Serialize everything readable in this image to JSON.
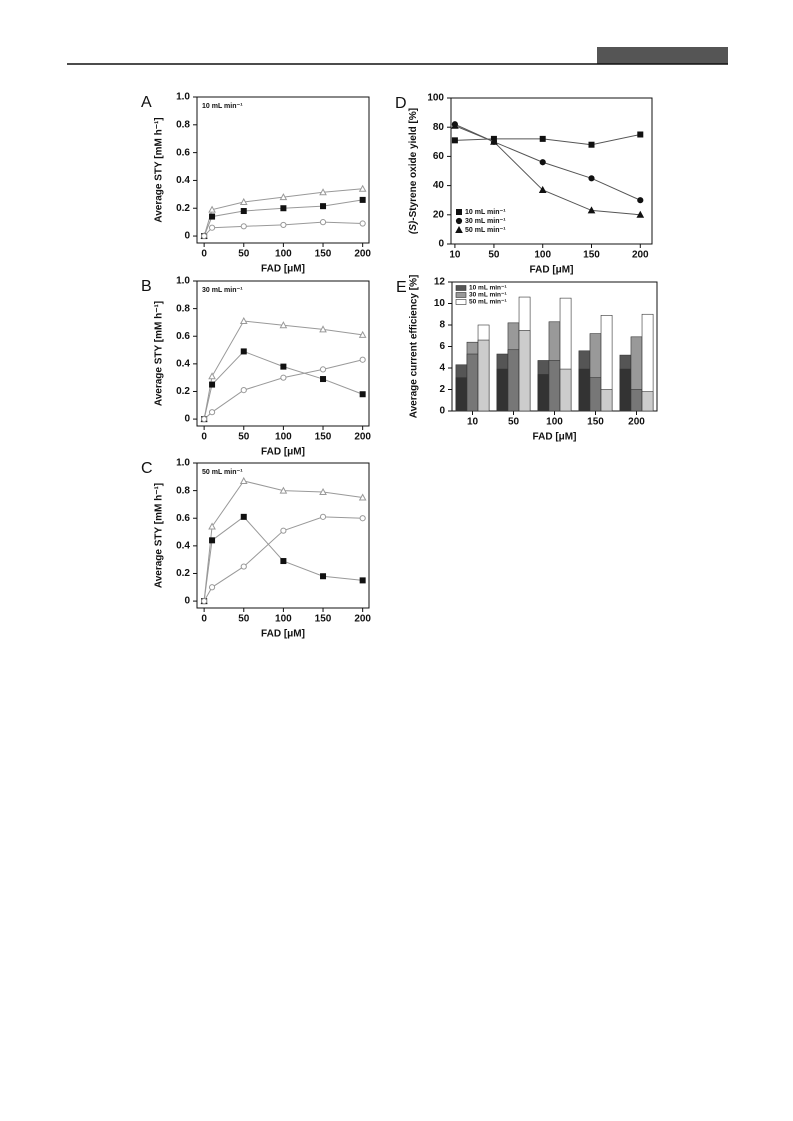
{
  "chart_data": [
    {
      "type": "line",
      "panel": "A",
      "annotation": "10 mL min⁻¹",
      "x_label": "FAD [μM]",
      "y_label": "Average STY [mM h⁻¹]",
      "x": [
        0,
        10,
        50,
        100,
        150,
        200
      ],
      "xlim": [
        -9,
        208
      ],
      "xticks": [
        0,
        50,
        100,
        150,
        200
      ],
      "ylim": [
        -0.05,
        1.0
      ],
      "yticks": [
        0,
        0.2,
        0.4,
        0.6,
        0.8,
        {
          "value": 1.0,
          "label": "1.0"
        }
      ],
      "series": [
        {
          "marker": "triangle",
          "color": "#999999",
          "values": [
            0,
            0.19,
            0.245,
            0.28,
            0.315,
            0.34
          ]
        },
        {
          "marker": "square",
          "color": "#111111",
          "values": [
            0,
            0.14,
            0.18,
            0.2,
            0.215,
            0.26
          ]
        },
        {
          "marker": "circle",
          "color": "#999999",
          "values": [
            0,
            0.06,
            0.07,
            0.08,
            0.1,
            0.09
          ]
        }
      ]
    },
    {
      "type": "line",
      "panel": "B",
      "annotation": "30 mL min⁻¹",
      "x_label": "FAD [μM]",
      "y_label": "Average STY [mM h⁻¹]",
      "x": [
        0,
        10,
        50,
        100,
        150,
        200
      ],
      "xlim": [
        -9,
        208
      ],
      "xticks": [
        0,
        50,
        100,
        150,
        200
      ],
      "ylim": [
        -0.05,
        1.0
      ],
      "yticks": [
        0,
        0.2,
        0.4,
        0.6,
        0.8,
        {
          "value": 1.0,
          "label": "1.0"
        }
      ],
      "series": [
        {
          "marker": "triangle",
          "color": "#999999",
          "values": [
            0,
            0.31,
            0.71,
            0.68,
            0.65,
            0.61
          ]
        },
        {
          "marker": "square",
          "color": "#111111",
          "values": [
            0,
            0.25,
            0.49,
            0.38,
            0.29,
            0.18
          ]
        },
        {
          "marker": "circle",
          "color": "#999999",
          "values": [
            0,
            0.05,
            0.21,
            0.3,
            0.36,
            0.43
          ]
        }
      ]
    },
    {
      "type": "line",
      "panel": "C",
      "annotation": "50 mL min⁻¹",
      "x_label": "FAD [μM]",
      "y_label": "Average STY [mM h⁻¹]",
      "x": [
        0,
        10,
        50,
        100,
        150,
        200
      ],
      "xlim": [
        -9,
        208
      ],
      "xticks": [
        0,
        50,
        100,
        150,
        200
      ],
      "ylim": [
        -0.05,
        1.0
      ],
      "yticks": [
        0,
        0.2,
        0.4,
        0.6,
        0.8,
        {
          "value": 1.0,
          "label": "1.0"
        }
      ],
      "series": [
        {
          "marker": "triangle",
          "color": "#999999",
          "values": [
            0,
            0.54,
            0.87,
            0.8,
            0.79,
            0.75
          ]
        },
        {
          "marker": "square",
          "color": "#111111",
          "values": [
            0,
            0.44,
            0.61,
            0.29,
            0.18,
            0.15
          ]
        },
        {
          "marker": "circle",
          "color": "#999999",
          "values": [
            0,
            0.1,
            0.25,
            0.51,
            0.61,
            0.6
          ]
        }
      ]
    },
    {
      "type": "scatter",
      "panel": "D",
      "x_label": "FAD [μM]",
      "y_label_italic": "(S)",
      "y_label": "-Styrene oxide yield [%]",
      "legend": "lower-left",
      "x": [
        10,
        50,
        100,
        150,
        200
      ],
      "xlim": [
        6,
        212
      ],
      "xticks": [
        10,
        50,
        100,
        150,
        200
      ],
      "ylim": [
        0,
        100
      ],
      "yticks": [
        0,
        20,
        40,
        60,
        80,
        100
      ],
      "series": [
        {
          "name": "10 mL min⁻¹",
          "marker": "square",
          "color": "#111111",
          "values": [
            71,
            72,
            72,
            68,
            75
          ]
        },
        {
          "name": "30 mL min⁻¹",
          "marker": "circle",
          "color": "#111111",
          "values": [
            82,
            70,
            56,
            45,
            30
          ]
        },
        {
          "name": "50 mL min⁻¹",
          "marker": "triangle",
          "color": "#111111",
          "values": [
            81,
            70,
            37,
            23,
            20
          ]
        }
      ]
    },
    {
      "type": "bar",
      "panel": "E",
      "x_label": "FAD [μM]",
      "y_label": "Average current efficiency [%]",
      "legend": "upper-left",
      "categories": [
        "10",
        "50",
        "100",
        "150",
        "200"
      ],
      "ylim": [
        0,
        12
      ],
      "yticks": [
        0,
        2,
        4,
        6,
        8,
        10,
        12
      ],
      "series": [
        {
          "name": "10 mL min⁻¹",
          "color": "#555555",
          "inner_color": "#333333",
          "values": [
            4.3,
            5.3,
            4.7,
            5.6,
            5.2
          ],
          "inner_values": [
            3.1,
            3.9,
            3.4,
            3.9,
            3.9
          ]
        },
        {
          "name": "30 mL min⁻¹",
          "color": "#999999",
          "inner_color": "#777777",
          "values": [
            6.4,
            8.2,
            8.3,
            7.2,
            6.9
          ],
          "inner_values": [
            5.3,
            5.7,
            4.7,
            3.1,
            2.0
          ]
        },
        {
          "name": "50 mL min⁻¹",
          "color": "#ffffff",
          "inner_color": "#cccccc",
          "values": [
            8.0,
            10.6,
            10.5,
            8.9,
            9.0
          ],
          "inner_values": [
            6.6,
            7.5,
            3.9,
            2.0,
            1.8
          ]
        }
      ]
    }
  ]
}
